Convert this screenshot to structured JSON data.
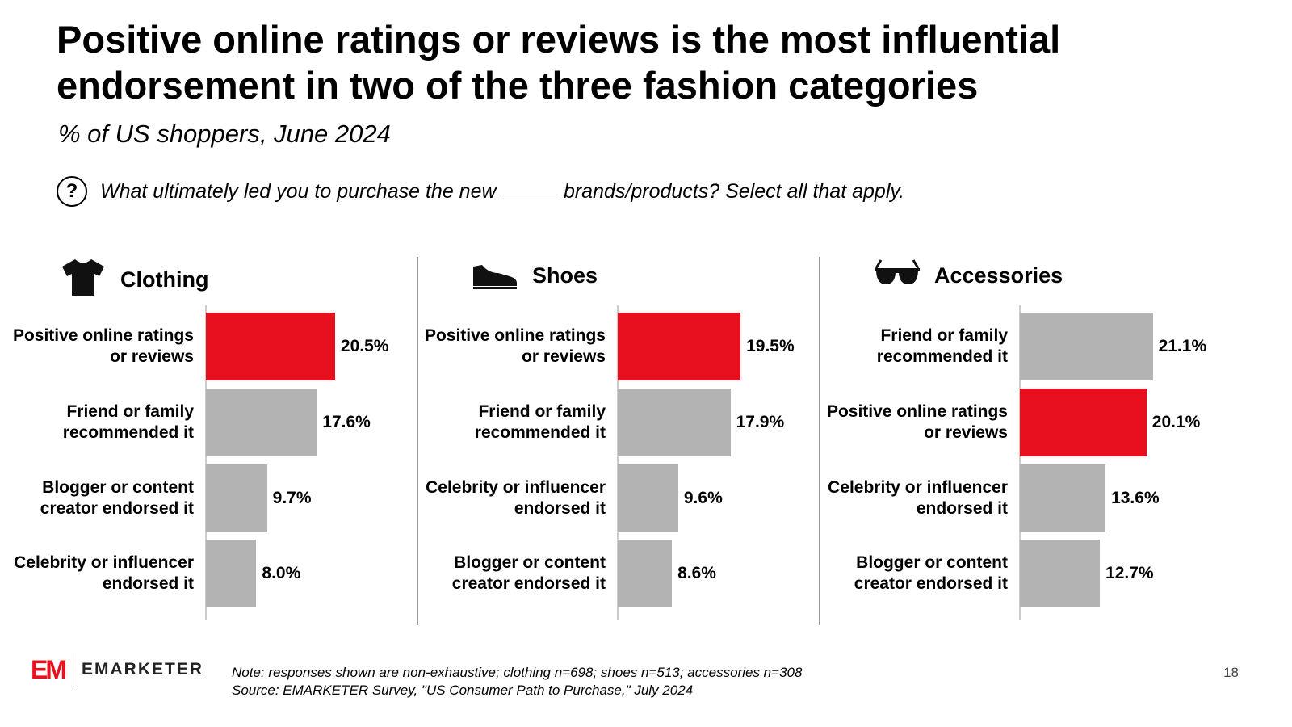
{
  "title": "Positive online ratings or reviews is the most influential endorsement in two of the three fashion categories",
  "subtitle": "% of US shoppers, June 2024",
  "question": "What ultimately led you to purchase the new _____ brands/products? Select all that apply.",
  "colors": {
    "highlight": "#e8101e",
    "bar": "#b3b3b3"
  },
  "chart_data": [
    {
      "type": "bar",
      "orientation": "horizontal",
      "title": "Clothing",
      "icon": "tshirt-icon",
      "categories": [
        "Positive online ratings or reviews",
        "Friend or family recommended it",
        "Blogger or content creator endorsed it",
        "Celebrity or influencer endorsed it"
      ],
      "values": [
        20.5,
        17.6,
        9.7,
        8.0
      ],
      "labels": [
        "20.5%",
        "17.6%",
        "9.7%",
        "8.0%"
      ],
      "highlight": 0
    },
    {
      "type": "bar",
      "orientation": "horizontal",
      "title": "Shoes",
      "icon": "shoe-icon",
      "categories": [
        "Positive online ratings or reviews",
        "Friend or family recommended it",
        "Celebrity or influencer endorsed it",
        "Blogger or content creator endorsed it"
      ],
      "values": [
        19.5,
        17.9,
        9.6,
        8.6
      ],
      "labels": [
        "19.5%",
        "17.9%",
        "9.6%",
        "8.6%"
      ],
      "highlight": 0
    },
    {
      "type": "bar",
      "orientation": "horizontal",
      "title": "Accessories",
      "icon": "sunglasses-icon",
      "categories": [
        "Friend or family recommended it",
        "Positive online ratings or reviews",
        "Celebrity or influencer endorsed it",
        "Blogger or content creator endorsed it"
      ],
      "values": [
        21.1,
        20.1,
        13.6,
        12.7
      ],
      "labels": [
        "21.1%",
        "20.1%",
        "13.6%",
        "12.7%"
      ],
      "highlight": 1
    }
  ],
  "footer": {
    "logo": "EMARKETER",
    "note": "Note: responses shown are non-exhaustive; clothing n=698; shoes n=513; accessories n=308",
    "source": "Source: EMARKETER Survey, \"US Consumer Path to Purchase,\" July 2024",
    "page": "18"
  }
}
